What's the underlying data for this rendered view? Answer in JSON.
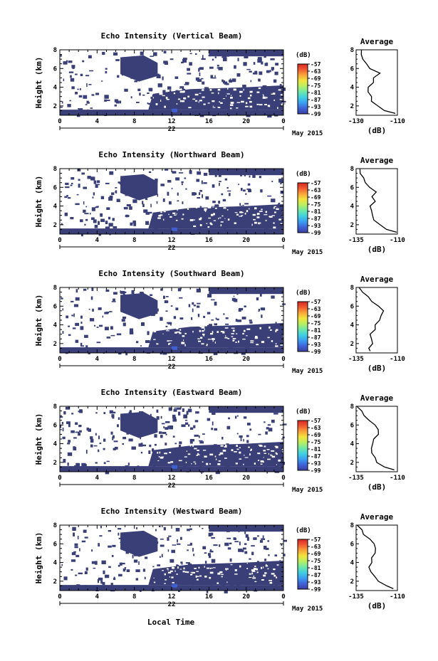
{
  "colors": {
    "field": "#3a3f78",
    "colormap": [
      "#3b3fa0",
      "#3f63d8",
      "#3c9ef0",
      "#41d0e0",
      "#6fe8a8",
      "#b8ef62",
      "#f2e43e",
      "#f9a53a",
      "#f05a30",
      "#d62828"
    ]
  },
  "shared": {
    "ylabel": "Height (km)",
    "xlabel": "Local Time",
    "date_label": "May 2015",
    "day_label": "22",
    "unit_label": "(dB)",
    "avg_title": "Average",
    "avg_xlabel": "(dB)",
    "x_ticks": [
      "0",
      "4",
      "8",
      "12",
      "16",
      "20",
      "0"
    ],
    "y_ticks": [
      "2",
      "4",
      "6",
      "8"
    ],
    "cb_ticks": [
      "-57",
      "-63",
      "-69",
      "-75",
      "-81",
      "-87",
      "-93",
      "-99"
    ]
  },
  "chart_data": [
    {
      "type": "heatmap",
      "title": "Echo Intensity (Vertical Beam)",
      "x_range_hours": [
        0,
        24
      ],
      "ylim_km": [
        1,
        8
      ],
      "clim_db": [
        -99,
        -57
      ],
      "avg_xticks": [
        "-130",
        "-110"
      ],
      "avg_xlim": [
        -130,
        -110
      ],
      "avg_profile": {
        "height_km": [
          1.2,
          1.5,
          2,
          2.5,
          3,
          3.5,
          4,
          4.5,
          5,
          5.5,
          6,
          6.5,
          7,
          7.5,
          8
        ],
        "db": [
          -111,
          -116,
          -120,
          -122,
          -123,
          -124,
          -124,
          -122,
          -121,
          -119,
          -123,
          -125,
          -127,
          -127,
          -128
        ]
      }
    },
    {
      "type": "heatmap",
      "title": "Echo Intensity (Northward Beam)",
      "x_range_hours": [
        0,
        24
      ],
      "ylim_km": [
        1,
        8
      ],
      "clim_db": [
        -99,
        -57
      ],
      "avg_xticks": [
        "-135",
        "-110"
      ],
      "avg_xlim": [
        -135,
        -110
      ],
      "avg_profile": {
        "height_km": [
          1.2,
          1.5,
          2,
          2.5,
          3,
          3.5,
          4,
          4.5,
          5,
          5.5,
          6,
          6.5,
          7,
          7.5,
          8
        ],
        "db": [
          -111,
          -116,
          -121,
          -124,
          -125,
          -126,
          -126,
          -124,
          -125,
          -123,
          -127,
          -129,
          -131,
          -132,
          -133
        ]
      }
    },
    {
      "type": "heatmap",
      "title": "Echo Intensity (Southward Beam)",
      "x_range_hours": [
        0,
        24
      ],
      "ylim_km": [
        1,
        8
      ],
      "clim_db": [
        -99,
        -57
      ],
      "avg_xticks": [
        "-135",
        "-110"
      ],
      "avg_xlim": [
        -135,
        -110
      ],
      "avg_profile": {
        "height_km": [
          1.2,
          1.5,
          2,
          2.5,
          3,
          3.5,
          4,
          4.5,
          5,
          5.5,
          6,
          6.5,
          7,
          7.5,
          8
        ],
        "db": [
          -127,
          -127,
          -125,
          -126,
          -126,
          -124,
          -123,
          -121,
          -120,
          -118,
          -122,
          -125,
          -128,
          -131,
          -133
        ]
      }
    },
    {
      "type": "heatmap",
      "title": "Echo Intensity (Eastward Beam)",
      "x_range_hours": [
        0,
        24
      ],
      "ylim_km": [
        1,
        8
      ],
      "clim_db": [
        -99,
        -57
      ],
      "avg_xticks": [
        "-135",
        "-110"
      ],
      "avg_xlim": [
        -135,
        -110
      ],
      "avg_profile": {
        "height_km": [
          1.2,
          1.5,
          2,
          2.5,
          3,
          3.5,
          4,
          4.5,
          5,
          5.5,
          6,
          6.5,
          7,
          7.5,
          8
        ],
        "db": [
          -112,
          -118,
          -122,
          -124,
          -125,
          -126,
          -125,
          -124,
          -122,
          -121,
          -124,
          -127,
          -130,
          -132,
          -134
        ]
      }
    },
    {
      "type": "heatmap",
      "title": "Echo Intensity (Westward Beam)",
      "x_range_hours": [
        0,
        24
      ],
      "ylim_km": [
        1,
        8
      ],
      "clim_db": [
        -99,
        -57
      ],
      "avg_xticks": [
        "-135",
        "-110"
      ],
      "avg_xlim": [
        -135,
        -110
      ],
      "avg_profile": {
        "height_km": [
          1.2,
          1.5,
          2,
          2.5,
          3,
          3.5,
          4,
          4.5,
          5,
          5.5,
          6,
          6.5,
          7,
          7.5,
          8
        ],
        "db": [
          -112,
          -117,
          -121,
          -124,
          -126,
          -127,
          -126,
          -125,
          -124,
          -123,
          -124,
          -127,
          -130,
          -132,
          -134
        ]
      }
    }
  ]
}
